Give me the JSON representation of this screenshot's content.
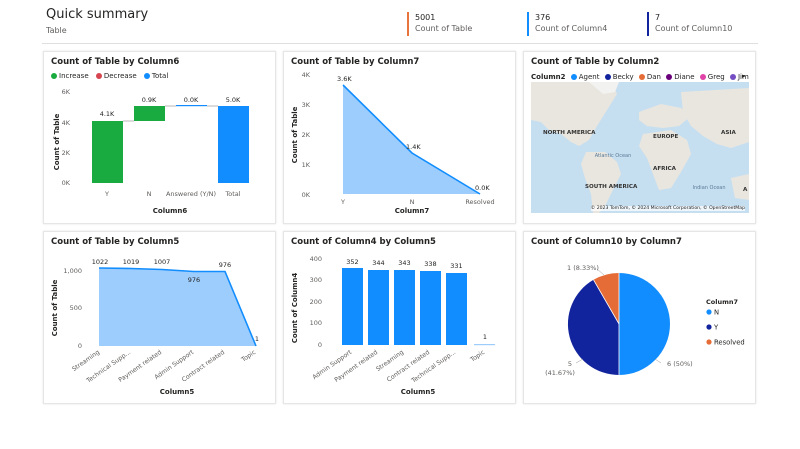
{
  "header": {
    "title": "Quick summary",
    "subtitle": "Table",
    "kpis": [
      {
        "value": "5001",
        "label": "Count of Table",
        "color": "#e8743b"
      },
      {
        "value": "376",
        "label": "Count of Column4",
        "color": "#118dff"
      },
      {
        "value": "7",
        "label": "Count of Column10",
        "color": "#12239e"
      }
    ]
  },
  "colors": {
    "green": "#1aab40",
    "red": "#d64550",
    "blue": "#118dff",
    "navy": "#12239e",
    "orange": "#e66c37",
    "area": "#9dcdfd"
  },
  "cards": {
    "waterfall": {
      "title": "Count of Table by Column6",
      "legend": [
        {
          "label": "Increase",
          "color": "#1aab40"
        },
        {
          "label": "Decrease",
          "color": "#d64550"
        },
        {
          "label": "Total",
          "color": "#118dff"
        }
      ],
      "ylabel": "Count of Table",
      "xlabel": "Column6",
      "yticks": [
        "6K",
        "4K",
        "2K",
        "0K"
      ],
      "categories": [
        "Y",
        "N",
        "Answered (Y/N)",
        "Total"
      ],
      "value_labels": [
        "4.1K",
        "0.9K",
        "0.0K",
        "5.0K"
      ]
    },
    "area7": {
      "title": "Count of Table by Column7",
      "ylabel": "Count of Table",
      "xlabel": "Column7",
      "yticks": [
        "4K",
        "3K",
        "2K",
        "1K",
        "0K"
      ],
      "categories": [
        "Y",
        "N",
        "Resolved"
      ],
      "value_labels": [
        "3.6K",
        "1.4K",
        "0.0K"
      ]
    },
    "map": {
      "title": "Count of Table by Column2",
      "legend_title": "Column2",
      "legend": [
        {
          "label": "Agent",
          "color": "#118dff"
        },
        {
          "label": "Becky",
          "color": "#12239e"
        },
        {
          "label": "Dan",
          "color": "#e66c37"
        },
        {
          "label": "Diane",
          "color": "#6b007b"
        },
        {
          "label": "Greg",
          "color": "#e044a7"
        },
        {
          "label": "Jim",
          "color": "#744ec2"
        }
      ],
      "labels": [
        "NORTH AMERICA",
        "EUROPE",
        "ASIA",
        "Atlantic Ocean",
        "AFRICA",
        "SOUTH AMERICA",
        "Indian Ocean",
        "A"
      ],
      "attribution": "© 2023 TomTom, © 2024 Microsoft Corporation, © OpenStreetMap"
    },
    "area5": {
      "title": "Count of Table by Column5",
      "ylabel": "Count of Table",
      "xlabel": "Column5",
      "yticks": [
        "1,000",
        "500",
        "0"
      ],
      "categories": [
        "Streaming",
        "Technical Supp...",
        "Payment related",
        "Admin Support",
        "Contract related",
        "Topic"
      ],
      "value_labels": [
        "1022",
        "1019",
        "1007",
        "976",
        "976",
        "1"
      ]
    },
    "bar5": {
      "title": "Count of Column4 by Column5",
      "ylabel": "Count of Column4",
      "xlabel": "Column5",
      "yticks": [
        "400",
        "300",
        "200",
        "100",
        "0"
      ],
      "categories": [
        "Admin Support",
        "Payment related",
        "Streaming",
        "Contract related",
        "Technical Supp...",
        "Topic"
      ],
      "value_labels": [
        "352",
        "344",
        "343",
        "338",
        "331",
        "1"
      ]
    },
    "pie": {
      "title": "Count of Column10 by Column7",
      "legend_title": "Column7",
      "legend": [
        {
          "label": "N",
          "color": "#118dff"
        },
        {
          "label": "Y",
          "color": "#12239e"
        },
        {
          "label": "Resolved",
          "color": "#e66c37"
        }
      ],
      "labels": [
        "6 (50%)",
        "5",
        "(41.67%)",
        "1 (8.33%)"
      ]
    }
  },
  "chart_data": [
    {
      "type": "bar",
      "title": "Count of Table by Column6",
      "subtype": "waterfall",
      "categories": [
        "Y",
        "N",
        "Answered (Y/N)",
        "Total"
      ],
      "values": [
        4100,
        900,
        0,
        5000
      ],
      "xlabel": "Column6",
      "ylabel": "Count of Table",
      "ylim": [
        0,
        6000
      ]
    },
    {
      "type": "area",
      "title": "Count of Table by Column7",
      "categories": [
        "Y",
        "N",
        "Resolved"
      ],
      "values": [
        3600,
        1400,
        0
      ],
      "xlabel": "Column7",
      "ylabel": "Count of Table",
      "ylim": [
        0,
        4000
      ]
    },
    {
      "type": "area",
      "title": "Count of Table by Column5",
      "categories": [
        "Streaming",
        "Technical Supp...",
        "Payment related",
        "Admin Support",
        "Contract related",
        "Topic"
      ],
      "values": [
        1022,
        1019,
        1007,
        976,
        976,
        1
      ],
      "xlabel": "Column5",
      "ylabel": "Count of Table",
      "ylim": [
        0,
        1050
      ]
    },
    {
      "type": "bar",
      "title": "Count of Column4 by Column5",
      "categories": [
        "Admin Support",
        "Payment related",
        "Streaming",
        "Contract related",
        "Technical Supp...",
        "Topic"
      ],
      "values": [
        352,
        344,
        343,
        338,
        331,
        1
      ],
      "xlabel": "Column5",
      "ylabel": "Count of Column4",
      "ylim": [
        0,
        400
      ]
    },
    {
      "type": "pie",
      "title": "Count of Column10 by Column7",
      "categories": [
        "N",
        "Y",
        "Resolved"
      ],
      "values": [
        6,
        5,
        1
      ]
    }
  ]
}
